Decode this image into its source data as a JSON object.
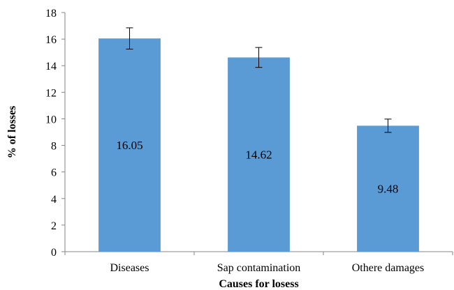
{
  "chart_data": {
    "type": "bar",
    "categories": [
      "Diseases",
      "Sap contamination",
      "Othere damages"
    ],
    "values": [
      16.05,
      14.62,
      9.48
    ],
    "error": [
      0.8,
      0.75,
      0.5
    ],
    "data_labels": [
      "16.05",
      "14.62",
      "9.48"
    ],
    "xlabel": "Causes for losess",
    "ylabel": "% of losses",
    "ylim": [
      0,
      18
    ],
    "yticks": [
      0,
      2,
      4,
      6,
      8,
      10,
      12,
      14,
      16,
      18
    ],
    "grid": false,
    "legend": "none",
    "bar_color": "#5b9bd5"
  }
}
